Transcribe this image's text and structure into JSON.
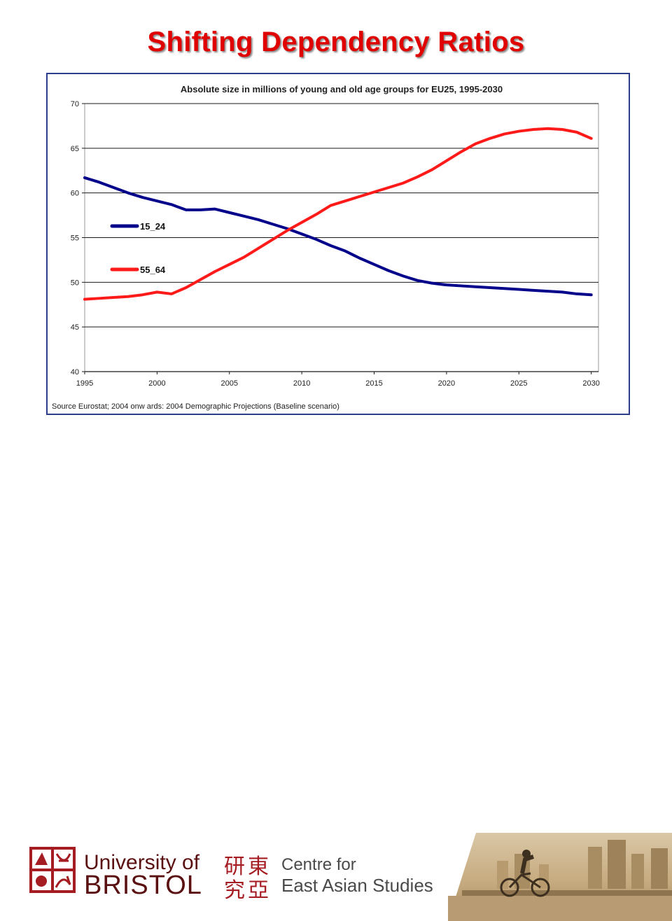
{
  "slide": {
    "title": "Shifting Dependency Ratios"
  },
  "chart_data": {
    "type": "line",
    "title": "Absolute size in millions of young and old age groups for EU25, 1995-2030",
    "source": "Source Eurostat; 2004 onw ards: 2004 Demographic Projections (Baseline scenario)",
    "xlabel": "",
    "ylabel": "",
    "x_ticks": [
      "1995",
      "2000",
      "2005",
      "2010",
      "2015",
      "2020",
      "2025",
      "2030"
    ],
    "y_ticks": [
      "40",
      "45",
      "50",
      "55",
      "60",
      "65",
      "70"
    ],
    "xlim": [
      1995,
      2030.5
    ],
    "ylim": [
      40,
      70
    ],
    "grid": "horizontal",
    "legend": "inside-left",
    "x": [
      1995,
      1996,
      1997,
      1998,
      1999,
      2000,
      2001,
      2002,
      2003,
      2004,
      2005,
      2006,
      2007,
      2008,
      2009,
      2010,
      2011,
      2012,
      2013,
      2014,
      2015,
      2016,
      2017,
      2018,
      2019,
      2020,
      2021,
      2022,
      2023,
      2024,
      2025,
      2026,
      2027,
      2028,
      2029,
      2030
    ],
    "series": [
      {
        "name": "15_24",
        "color": "#00008b",
        "values": [
          61.7,
          61.2,
          60.6,
          60.0,
          59.5,
          59.1,
          58.7,
          58.1,
          58.1,
          58.2,
          57.8,
          57.4,
          57.0,
          56.5,
          56.0,
          55.4,
          54.8,
          54.1,
          53.5,
          52.7,
          52.0,
          51.3,
          50.7,
          50.2,
          49.9,
          49.7,
          49.6,
          49.5,
          49.4,
          49.3,
          49.2,
          49.1,
          49.0,
          48.9,
          48.7,
          48.6
        ]
      },
      {
        "name": "55_64",
        "color": "#ff1a1a",
        "values": [
          48.1,
          48.2,
          48.3,
          48.4,
          48.6,
          48.9,
          48.7,
          49.4,
          50.3,
          51.2,
          52.0,
          52.8,
          53.8,
          54.8,
          55.8,
          56.7,
          57.6,
          58.6,
          59.1,
          59.6,
          60.1,
          60.6,
          61.1,
          61.8,
          62.6,
          63.6,
          64.6,
          65.5,
          66.1,
          66.6,
          66.9,
          67.1,
          67.2,
          67.1,
          66.8,
          66.1
        ]
      }
    ]
  },
  "footer": {
    "university_line1": "University of",
    "university_line2": "BRISTOL",
    "centre_line1": "Centre for",
    "centre_line2": "East Asian Studies",
    "chinese_chars": [
      "研",
      "東",
      "究",
      "亞"
    ]
  }
}
